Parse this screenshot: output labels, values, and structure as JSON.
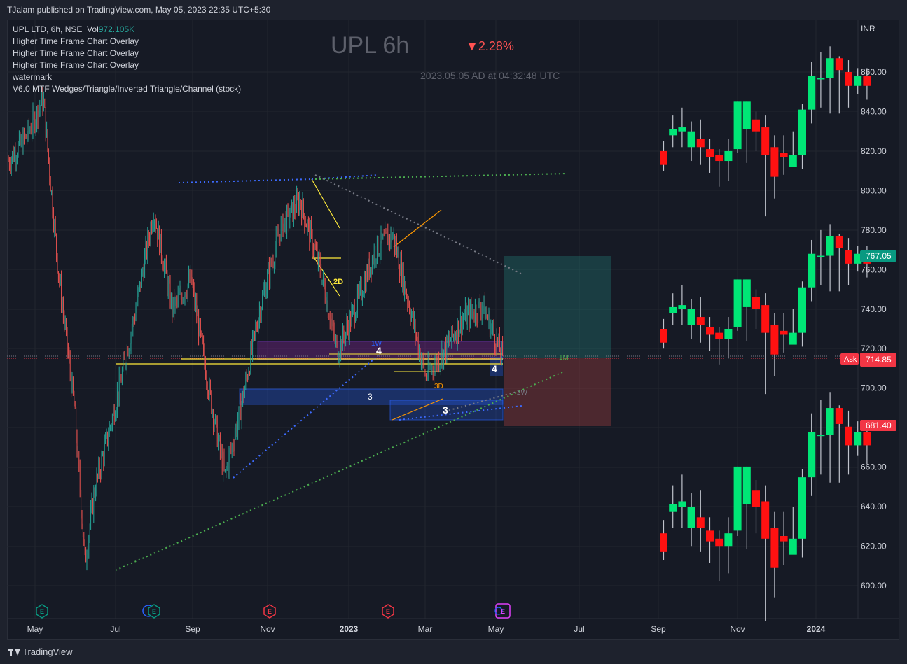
{
  "header": {
    "published": "TJalam published on TradingView.com, May 05, 2023 22:35 UTC+5:30"
  },
  "legend": {
    "symbol_line": "UPL LTD, 6h, NSE",
    "vol_label": "Vol",
    "vol_value": "972.105K",
    "indicators": [
      "Higher Time Frame Chart Overlay",
      "Higher Time Frame Chart Overlay",
      "Higher Time Frame Chart Overlay",
      "watermark",
      "V6.0 MTF Wedges/Triangle/Inverted Triangle/Channel (stock)"
    ]
  },
  "watermark": {
    "title": "UPL 6h",
    "change": "▼2.28%",
    "timestamp": "2023.05.05 AD at 04:32:48 UTC"
  },
  "footer": {
    "brand": "TradingView"
  },
  "colors": {
    "up": "#00e676",
    "down": "#ff1111",
    "background": "#161a25",
    "price_label": "#f23645",
    "target_label": "#089981"
  },
  "chart_data": {
    "type": "candlestick",
    "currency": "INR",
    "y_ticks": [
      "860.00",
      "840.00",
      "820.00",
      "800.00",
      "780.00",
      "760.00",
      "740.00",
      "720.00",
      "700.00",
      "680.00",
      "660.00",
      "640.00",
      "620.00",
      "600.00"
    ],
    "x_ticks": [
      "May",
      "Jul",
      "Sep",
      "Nov",
      "2023",
      "Mar",
      "May",
      "Jul",
      "Sep",
      "Nov",
      "2024"
    ],
    "price_labels": {
      "target": "767.05",
      "current": "714.85",
      "ask": "Ask",
      "stop": "681.40"
    },
    "main_series_close_path": [
      {
        "x": "2022-05-02",
        "y": 815
      },
      {
        "x": "2022-05-16",
        "y": 828
      },
      {
        "x": "2022-05-28",
        "y": 846
      },
      {
        "x": "2022-06-08",
        "y": 760
      },
      {
        "x": "2022-06-20",
        "y": 690
      },
      {
        "x": "2022-06-28",
        "y": 612
      },
      {
        "x": "2022-07-05",
        "y": 648
      },
      {
        "x": "2022-07-20",
        "y": 690
      },
      {
        "x": "2022-08-05",
        "y": 740
      },
      {
        "x": "2022-08-18",
        "y": 790
      },
      {
        "x": "2022-09-01",
        "y": 740
      },
      {
        "x": "2022-09-15",
        "y": 755
      },
      {
        "x": "2022-09-28",
        "y": 700
      },
      {
        "x": "2022-10-10",
        "y": 655
      },
      {
        "x": "2022-10-22",
        "y": 690
      },
      {
        "x": "2022-11-05",
        "y": 740
      },
      {
        "x": "2022-11-20",
        "y": 780
      },
      {
        "x": "2022-12-05",
        "y": 795
      },
      {
        "x": "2022-12-20",
        "y": 760
      },
      {
        "x": "2023-01-02",
        "y": 718
      },
      {
        "x": "2023-01-16",
        "y": 742
      },
      {
        "x": "2023-01-30",
        "y": 770
      },
      {
        "x": "2023-02-12",
        "y": 778
      },
      {
        "x": "2023-02-25",
        "y": 740
      },
      {
        "x": "2023-03-08",
        "y": 706
      },
      {
        "x": "2023-03-20",
        "y": 716
      },
      {
        "x": "2023-04-05",
        "y": 735
      },
      {
        "x": "2023-04-20",
        "y": 742
      },
      {
        "x": "2023-05-05",
        "y": 715
      }
    ],
    "annotations": [
      "2D",
      "1W",
      "4",
      "4",
      "3",
      "3",
      "3D",
      "1M",
      "2W"
    ],
    "htf_overlay_candles": [
      {
        "open": 820,
        "close": 813,
        "high": 825,
        "low": 810
      },
      {
        "open": 828,
        "close": 831,
        "high": 838,
        "low": 822
      },
      {
        "open": 830,
        "close": 832,
        "high": 842,
        "low": 822
      },
      {
        "open": 822,
        "close": 830,
        "high": 835,
        "low": 815
      },
      {
        "open": 826,
        "close": 822,
        "high": 836,
        "low": 813
      },
      {
        "open": 821,
        "close": 817,
        "high": 826,
        "low": 809
      },
      {
        "open": 818,
        "close": 815,
        "high": 821,
        "low": 802
      },
      {
        "open": 815,
        "close": 820,
        "high": 826,
        "low": 805
      },
      {
        "open": 821,
        "close": 845,
        "high": 845,
        "low": 819
      },
      {
        "open": 831,
        "close": 845,
        "high": 845,
        "low": 814
      },
      {
        "open": 836,
        "close": 830,
        "high": 840,
        "low": 820
      },
      {
        "open": 832,
        "close": 818,
        "high": 838,
        "low": 787
      },
      {
        "open": 822,
        "close": 807,
        "high": 828,
        "low": 796
      },
      {
        "open": 819,
        "close": 817,
        "high": 828,
        "low": 808
      },
      {
        "open": 812,
        "close": 818,
        "high": 830,
        "low": 813
      },
      {
        "open": 818,
        "close": 841,
        "high": 844,
        "low": 811
      },
      {
        "open": 841,
        "close": 858,
        "high": 865,
        "low": 834
      },
      {
        "open": 857,
        "close": 857,
        "high": 870,
        "low": 842
      },
      {
        "open": 857,
        "close": 867,
        "high": 873,
        "low": 839
      },
      {
        "open": 867,
        "close": 861,
        "high": 868,
        "low": 839
      },
      {
        "open": 860,
        "close": 853,
        "high": 866,
        "low": 842
      },
      {
        "open": 853,
        "close": 858,
        "high": 862,
        "low": 849
      },
      {
        "open": 858,
        "close": 853,
        "high": 862,
        "low": 846
      }
    ]
  }
}
